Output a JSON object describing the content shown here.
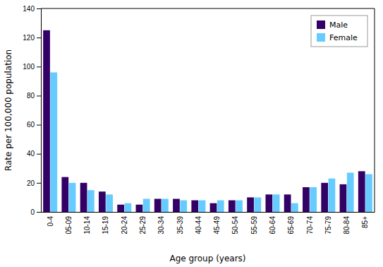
{
  "chart_data": {
    "type": "bar",
    "categories": [
      "0-4",
      "05-09",
      "10-14",
      "15-19",
      "20-24",
      "25-29",
      "30-34",
      "35-39",
      "40-44",
      "45-49",
      "50-54",
      "55-59",
      "60-64",
      "65-69",
      "70-74",
      "75-79",
      "80-84",
      "85+"
    ],
    "series": [
      {
        "name": "Male",
        "color": "#330066",
        "values": [
          125,
          24,
          20,
          14,
          5,
          5,
          9,
          9,
          8,
          6,
          8,
          10,
          12,
          12,
          17,
          20,
          19,
          28
        ]
      },
      {
        "name": "Female",
        "color": "#66ccff",
        "values": [
          96,
          20,
          15,
          12,
          6,
          9,
          9,
          8,
          8,
          8,
          8,
          10,
          12,
          6,
          17,
          23,
          27,
          26
        ]
      }
    ],
    "xlabel": "Age group (years)",
    "ylabel": "Rate per 100,000 population",
    "ylim": [
      0,
      140
    ],
    "yticks": [
      0,
      20,
      40,
      60,
      80,
      100,
      120,
      140
    ],
    "grid": false,
    "legend": "upper right"
  }
}
